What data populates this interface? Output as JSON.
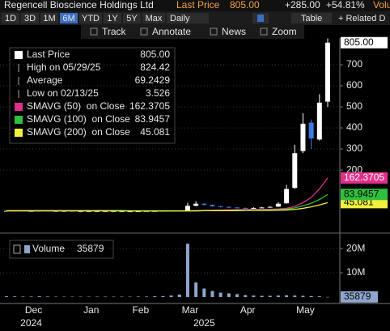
{
  "header": {
    "title": "Regencell Bioscience Holdings Ltd",
    "last_price_label": "Last Price",
    "last_price": "805.00",
    "change": "+285.00",
    "change_pct": "+54.81%",
    "volume_label": "Volu"
  },
  "toolbar": {
    "periods": [
      "1D",
      "3D",
      "1M",
      "6M",
      "YTD",
      "1Y",
      "5Y",
      "Max"
    ],
    "selected": "6M",
    "frequency": "Daily",
    "table": "Table",
    "related": "+ Related D",
    "tools": [
      "Track",
      "Annotate",
      "News",
      "Zoom"
    ]
  },
  "chart_data": [
    {
      "type": "candlestick",
      "categories": [
        null,
        null,
        null,
        "Dec",
        null,
        null,
        null,
        null,
        null,
        null,
        "Jan",
        null,
        null,
        null,
        null,
        null,
        "Feb",
        null,
        null,
        null,
        null,
        null,
        "Mar",
        null,
        null,
        null,
        null,
        null,
        null,
        "Apr",
        null,
        null,
        null,
        null,
        null,
        null,
        "May",
        null,
        null,
        null
      ],
      "year_categories": [
        null,
        null,
        null,
        "2024",
        null,
        null,
        null,
        null,
        null,
        null,
        null,
        null,
        null,
        null,
        null,
        null,
        null,
        null,
        null,
        null,
        null,
        null,
        null,
        null,
        "2025",
        null,
        null,
        null,
        null,
        null,
        null,
        null,
        null,
        null,
        null,
        null,
        null,
        null,
        null,
        null
      ],
      "open": [
        6,
        6,
        6,
        5,
        5,
        6,
        5,
        5,
        5,
        4,
        4,
        4,
        4,
        4,
        4,
        4,
        4,
        4,
        5,
        5,
        6,
        7,
        8,
        30,
        40,
        35,
        28,
        25,
        22,
        20,
        18,
        20,
        22,
        26,
        42,
        115,
        290,
        425,
        345,
        525
      ],
      "high": [
        7,
        7,
        6,
        6,
        7,
        6,
        6,
        6,
        5,
        5,
        5,
        5,
        5,
        5,
        5,
        5,
        5,
        6,
        6,
        7,
        8,
        8,
        45,
        52,
        42,
        36,
        30,
        27,
        24,
        22,
        23,
        25,
        28,
        48,
        130,
        320,
        470,
        440,
        560,
        824.42
      ],
      "low": [
        5,
        5,
        4,
        4,
        4,
        4,
        4,
        4,
        3.8,
        3.8,
        3.8,
        3.8,
        3.8,
        3.8,
        3.8,
        3.8,
        3.7,
        3.526,
        4.5,
        5,
        6,
        6,
        8,
        28,
        30,
        26,
        22,
        20,
        18,
        16,
        17,
        19,
        21,
        25,
        40,
        110,
        280,
        300,
        340,
        500
      ],
      "close": [
        6,
        6,
        5,
        5,
        6,
        5,
        5,
        5,
        4,
        4,
        4,
        4,
        4,
        4,
        4,
        4,
        4,
        5,
        5,
        6,
        7,
        7,
        30,
        40,
        35,
        28,
        25,
        22,
        20,
        18,
        20,
        22,
        25,
        40,
        110,
        280,
        420,
        350,
        520,
        805
      ],
      "up_color": "#ffffff",
      "down_color": "#3d7be0",
      "series": [
        {
          "name": "SMAVG (50)  on Close",
          "color": "#e0308a",
          "values": [
            5,
            5,
            5,
            5,
            5,
            5,
            5,
            5,
            5,
            5,
            5,
            5,
            5,
            5,
            5,
            5,
            5,
            5,
            5,
            5,
            5,
            5,
            6,
            7,
            8,
            9,
            10,
            11,
            12,
            12,
            13,
            13,
            14,
            15,
            18,
            28,
            45,
            70,
            110,
            162.3705
          ]
        },
        {
          "name": "SMAVG (100)  on Close",
          "color": "#30c040",
          "values": [
            6,
            6,
            6,
            6,
            6,
            6,
            6,
            6,
            6,
            6,
            6,
            6,
            6,
            5,
            5,
            5,
            5,
            5,
            5,
            5,
            5,
            5,
            6,
            6,
            7,
            7,
            8,
            8,
            9,
            9,
            10,
            10,
            11,
            12,
            14,
            20,
            30,
            42,
            60,
            83.9457
          ]
        },
        {
          "name": "SMAVG (200)  on Close",
          "color": "#f0f040",
          "values": [
            7,
            7,
            7,
            7,
            7,
            7,
            7,
            7,
            7,
            7,
            7,
            7,
            7,
            7,
            7,
            6,
            6,
            6,
            6,
            6,
            6,
            6,
            6,
            6,
            7,
            7,
            7,
            7,
            7,
            8,
            8,
            8,
            8,
            9,
            10,
            13,
            18,
            25,
            34,
            45.081
          ]
        }
      ],
      "stats": [
        {
          "name": "Last Price",
          "value_label": "805.00"
        },
        {
          "name": "High on 05/29/25",
          "value": 824.42
        },
        {
          "name": "Average",
          "value": 69.2429
        },
        {
          "name": "Low on 02/13/25",
          "value": 3.526
        }
      ],
      "ylim": [
        -88,
        827
      ],
      "yticks": [
        200,
        300,
        400,
        500,
        600,
        700
      ],
      "grid": true
    },
    {
      "type": "bar",
      "name": "Volume",
      "color": "#8ea6cc",
      "values": [
        300000,
        250000,
        200000,
        200000,
        300000,
        200000,
        150000,
        150000,
        150000,
        150000,
        150000,
        150000,
        150000,
        150000,
        150000,
        150000,
        200000,
        200000,
        300000,
        400000,
        600000,
        1000000,
        22000000,
        6000000,
        3500000,
        2500000,
        1800000,
        1500000,
        1200000,
        800000,
        600000,
        500000,
        500000,
        600000,
        700000,
        600000,
        500000,
        400000,
        300000,
        35879
      ],
      "ylim": [
        0,
        24700000
      ],
      "yticks": [
        {
          "value": 10000000,
          "label": "10M"
        },
        {
          "value": 20000000,
          "label": "20M"
        }
      ],
      "grid": true
    }
  ]
}
